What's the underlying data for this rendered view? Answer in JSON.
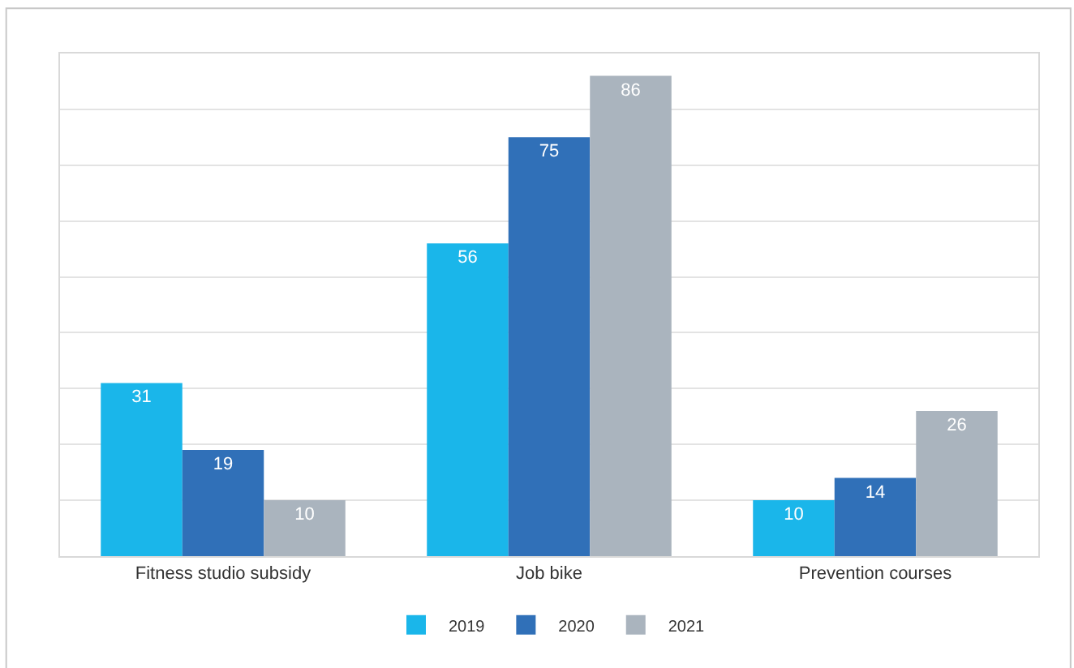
{
  "chart_data": {
    "type": "bar",
    "categories": [
      "Fitness studio subsidy",
      "Job bike",
      "Prevention courses"
    ],
    "series": [
      {
        "name": "2019",
        "color": "#1ab6ea",
        "values": [
          31,
          56,
          10
        ]
      },
      {
        "name": "2020",
        "color": "#3070b8",
        "values": [
          19,
          75,
          14
        ]
      },
      {
        "name": "2021",
        "color": "#aab4be",
        "values": [
          10,
          86,
          26
        ]
      }
    ],
    "ylim": [
      0,
      90
    ],
    "yticks": [
      {
        "value": 0,
        "label": null
      },
      {
        "value": 10,
        "label": null
      },
      {
        "value": 20,
        "label": null
      },
      {
        "value": 30,
        "label": null
      },
      {
        "value": 40,
        "label": null
      },
      {
        "value": 50,
        "label": null
      },
      {
        "value": 60,
        "label": null
      },
      {
        "value": 70,
        "label": null
      },
      {
        "value": 80,
        "label": null
      },
      {
        "value": 90,
        "label": null
      }
    ],
    "grid": "y",
    "tick_labels": "x",
    "data_labels": true,
    "legend": "bottom"
  }
}
